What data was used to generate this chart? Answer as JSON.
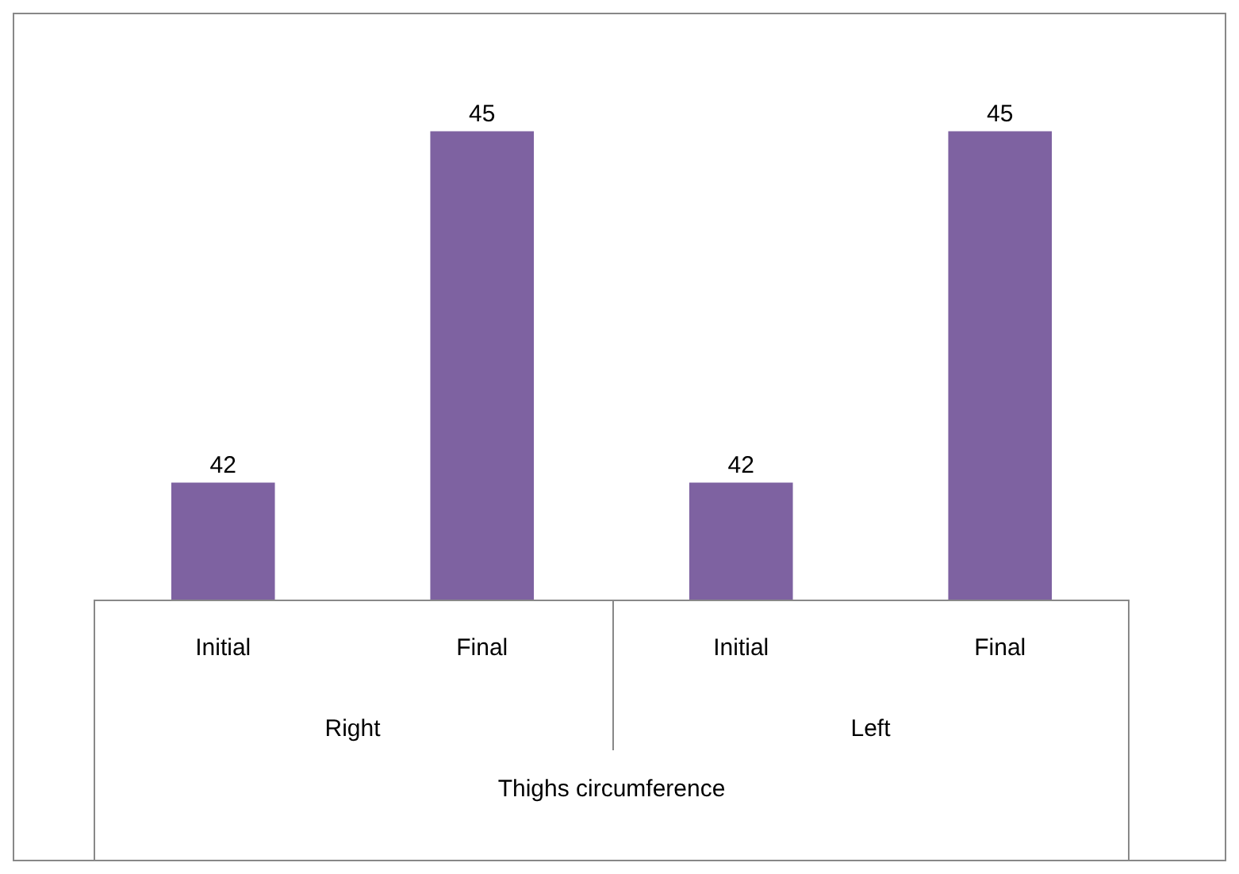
{
  "chart_data": {
    "type": "bar",
    "categories": [
      "Initial",
      "Final",
      "Initial",
      "Final"
    ],
    "values": [
      42,
      45,
      42,
      45
    ],
    "color": "#7e62a1",
    "data_labels": true,
    "legend": false,
    "xlabel": "Thighs circumference",
    "annotations": [
      "Right",
      "Left"
    ]
  }
}
